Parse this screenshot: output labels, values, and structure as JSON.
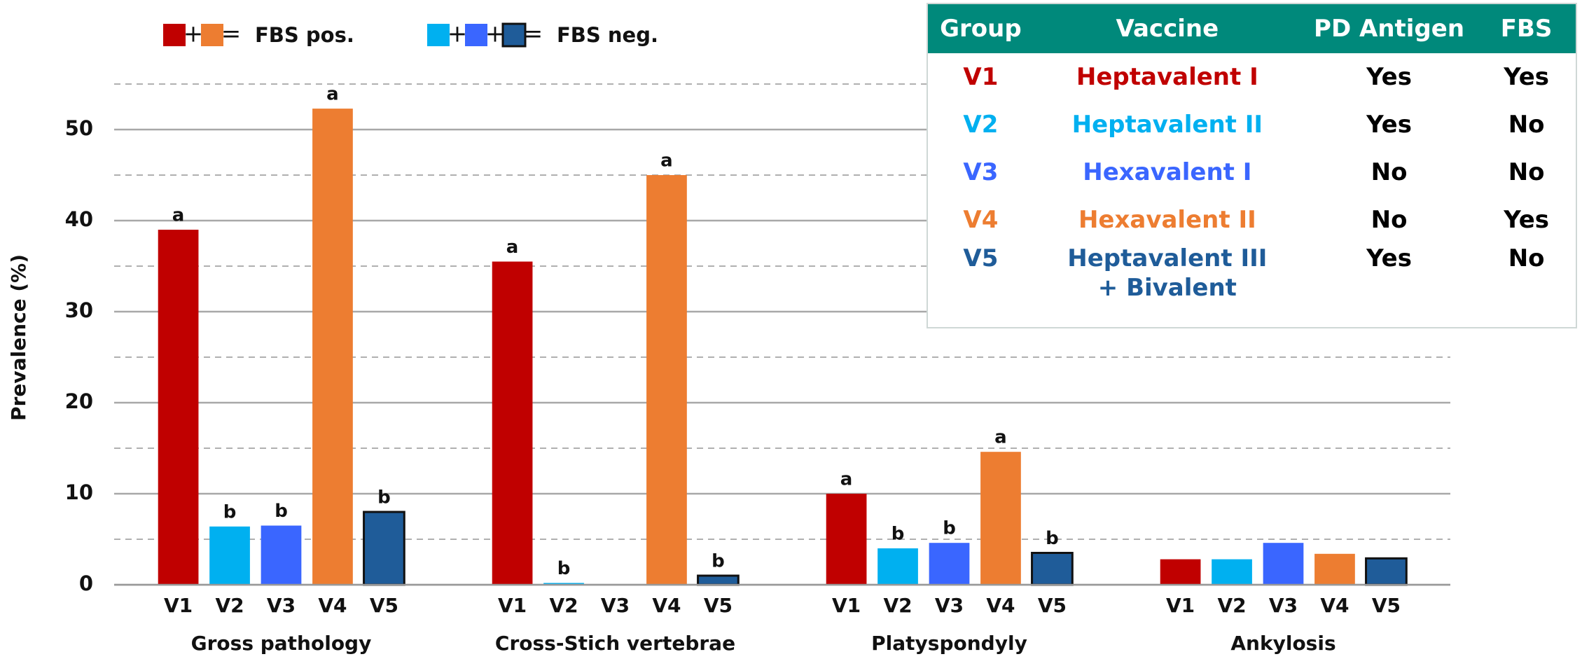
{
  "chart_data": {
    "type": "bar",
    "y_label": "Prevalence (%)",
    "categories": [
      "Gross pathology",
      "Cross-Stich vertebrae",
      "Platyspondyly",
      "Ankylosis"
    ],
    "series": [
      {
        "name": "V1",
        "color": "#c00000",
        "values": [
          39.0,
          35.5,
          10.0,
          2.8
        ],
        "letters": [
          "a",
          "a",
          "a",
          null
        ]
      },
      {
        "name": "V2",
        "color": "#00b0f0",
        "values": [
          6.4,
          0.2,
          4.0,
          2.8
        ],
        "letters": [
          "b",
          "b",
          "b",
          null
        ]
      },
      {
        "name": "V3",
        "color": "#3a66ff",
        "values": [
          6.5,
          0,
          4.6,
          4.6
        ],
        "letters": [
          "b",
          null,
          "b",
          null
        ]
      },
      {
        "name": "V4",
        "color": "#ed7d31",
        "values": [
          52.3,
          45.0,
          14.6,
          3.4
        ],
        "letters": [
          "a",
          "a",
          "a",
          null
        ]
      },
      {
        "name": "V5",
        "color": "#1f5c99",
        "outline": "#111111",
        "values": [
          8.0,
          1.0,
          3.5,
          2.9
        ],
        "letters": [
          "b",
          "b",
          "b",
          null
        ]
      }
    ],
    "legend": [
      {
        "label": "FBS pos.",
        "series": [
          0,
          3
        ]
      },
      {
        "label": "FBS neg.",
        "series": [
          1,
          2,
          4
        ]
      }
    ],
    "ylim": [
      0,
      55
    ],
    "yticks": [
      0,
      10,
      20,
      30,
      40,
      50
    ],
    "minor_yticks": [
      5,
      15,
      25,
      35,
      45,
      55
    ],
    "grid": true
  },
  "table": {
    "header": [
      "Group",
      "Vaccine",
      "PD Antigen",
      "FBS"
    ],
    "rows": [
      [
        "V1",
        "Heptavalent I",
        "Yes",
        "Yes"
      ],
      [
        "V2",
        "Heptavalent II",
        "Yes",
        "No"
      ],
      [
        "V3",
        "Hexavalent I",
        "No",
        "No"
      ],
      [
        "V4",
        "Hexavalent II",
        "No",
        "Yes"
      ],
      [
        "V5",
        "Heptavalent III + Bivalent",
        "Yes",
        "No"
      ]
    ]
  }
}
